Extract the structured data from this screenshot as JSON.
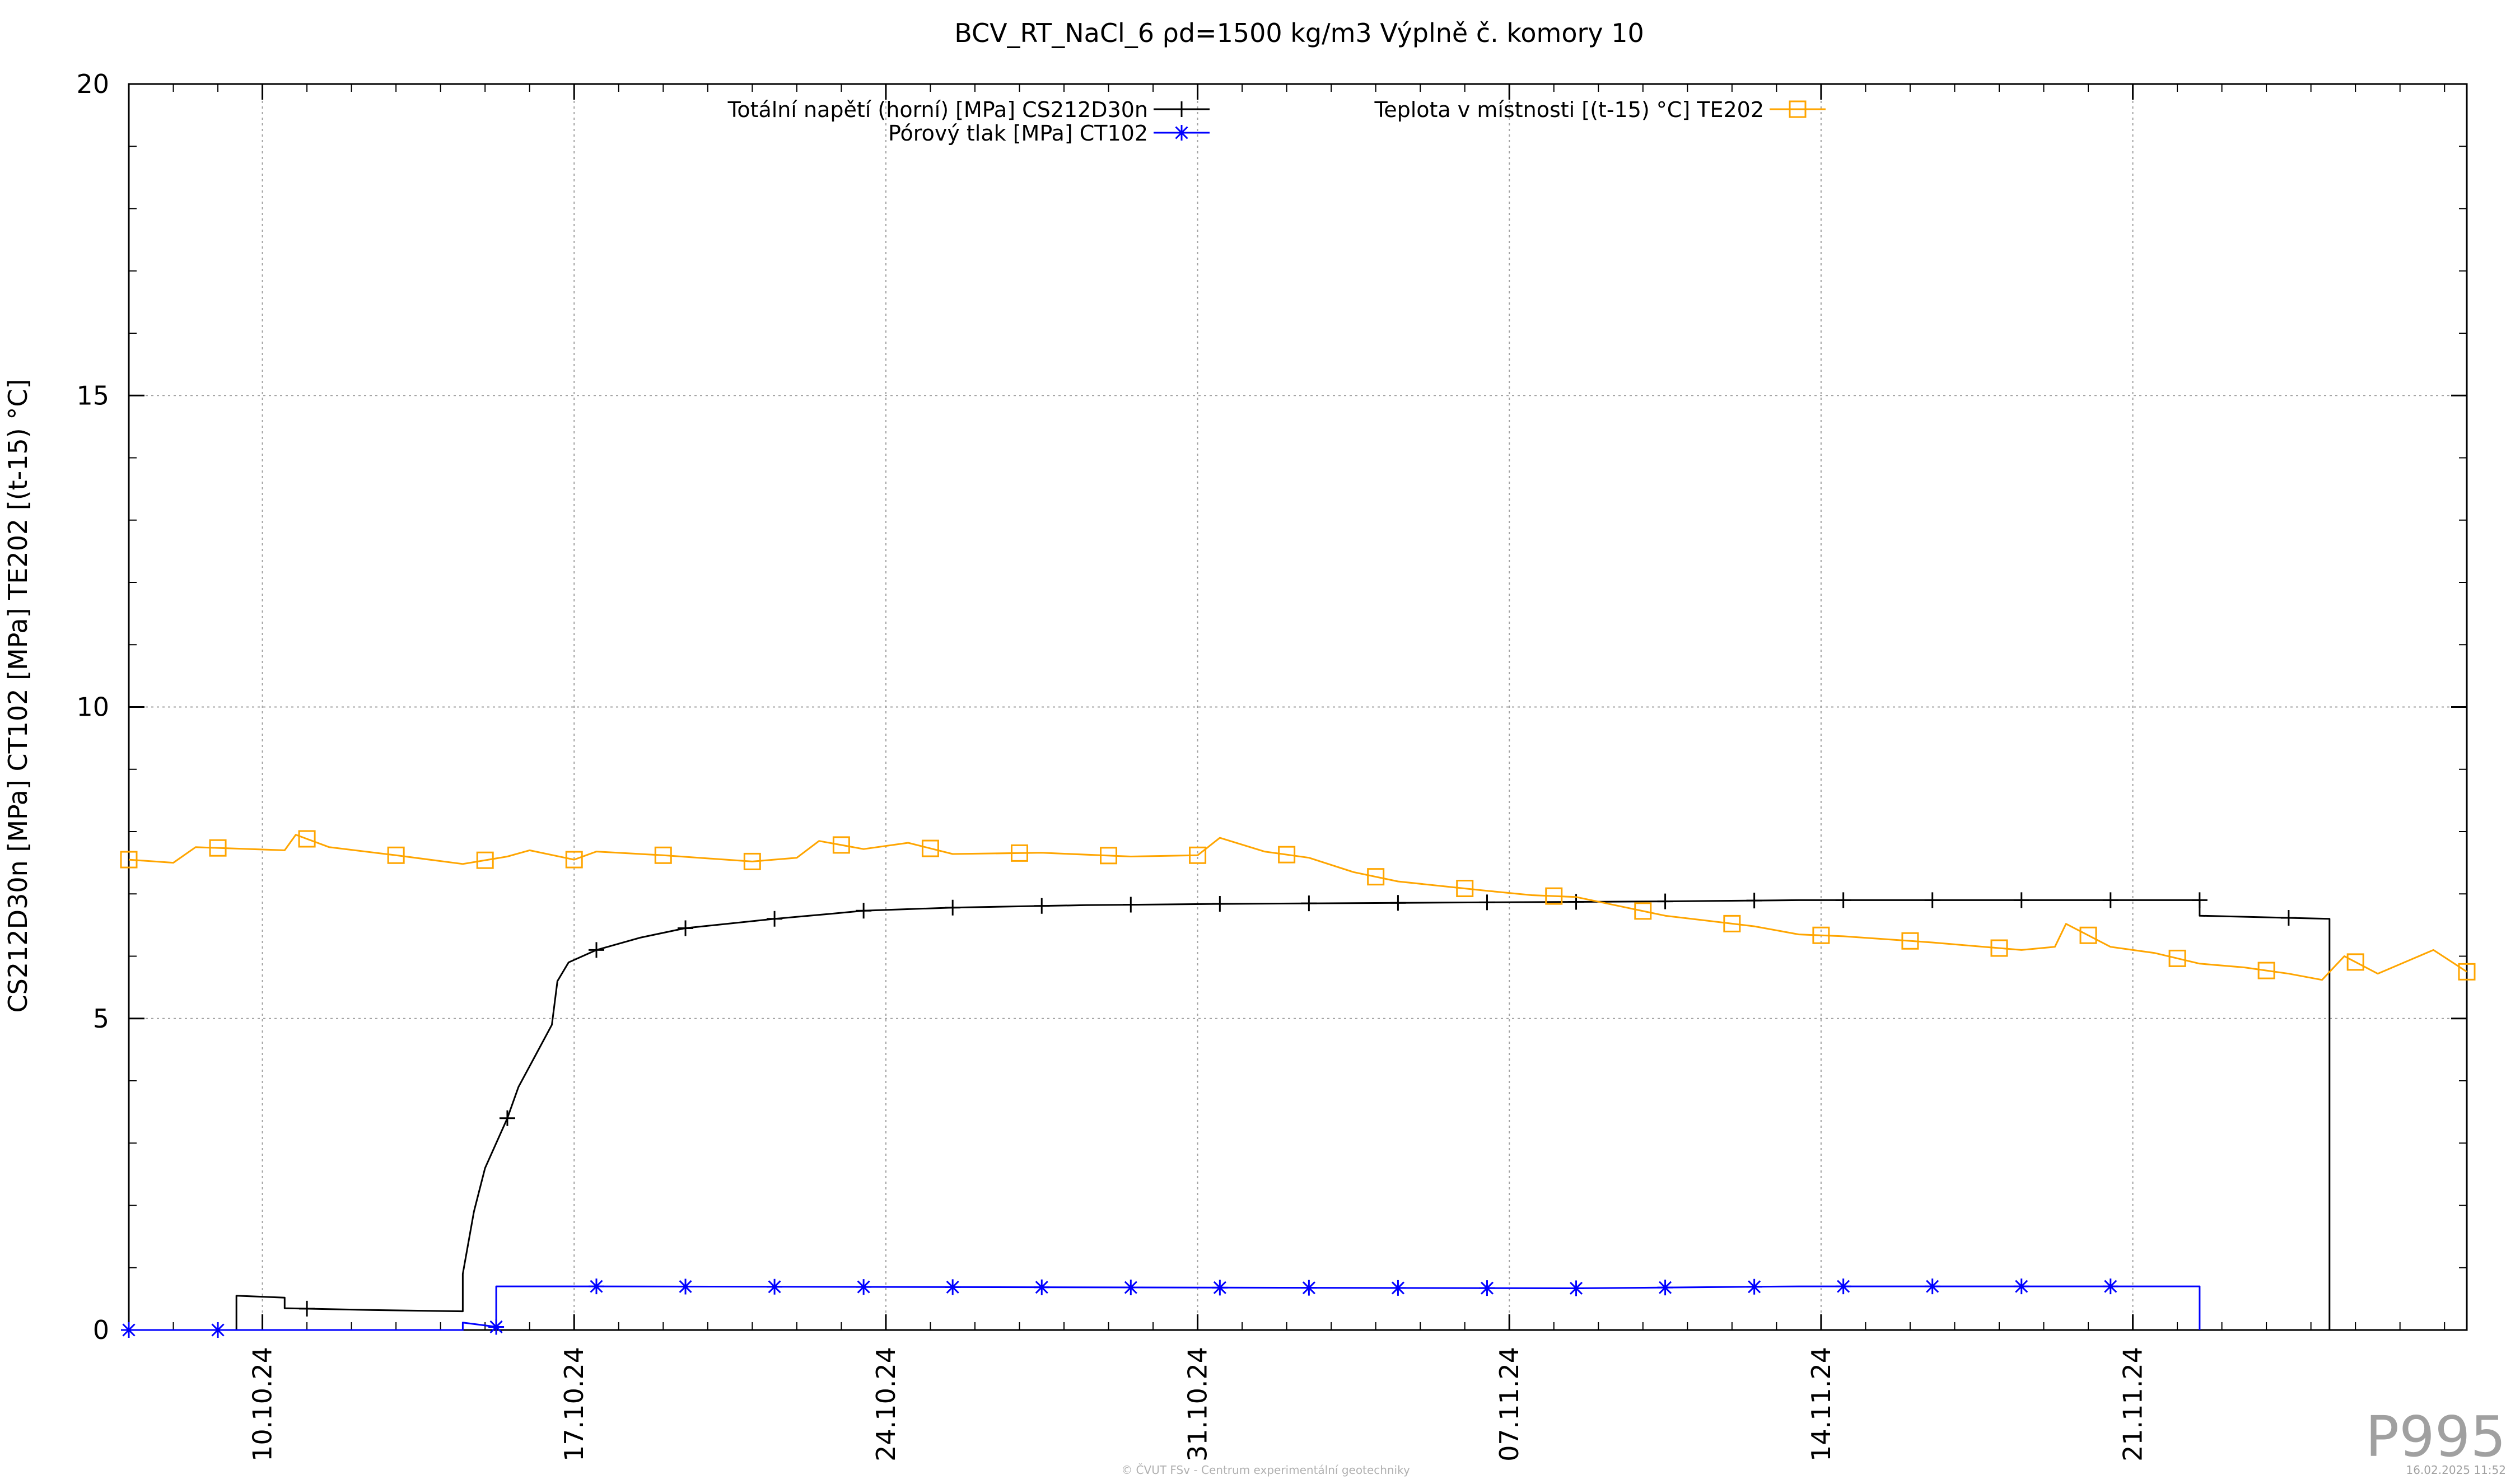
{
  "chart_data": {
    "type": "line",
    "title": "BCV_RT_NaCl_6 ρd=1500 kg/m3 Výplně č. komory 10",
    "ylabel": "CS212D30n [MPa] CT102 [MPa] TE202 [(t-15) °C]",
    "xlabel": "",
    "ylim": [
      0,
      20
    ],
    "yticks": [
      0,
      5,
      10,
      15,
      20
    ],
    "xlim": [
      "2024-10-07T00:00",
      "2024-11-28T12:00"
    ],
    "xticks": [
      "10.10.24",
      "17.10.24",
      "24.10.24",
      "31.10.24",
      "07.11.24",
      "14.11.24",
      "21.11.24"
    ],
    "xtick_dates": [
      "2024-10-10",
      "2024-10-17",
      "2024-10-24",
      "2024-10-31",
      "2024-11-07",
      "2024-11-14",
      "2024-11-21"
    ],
    "grid": true,
    "legend_position": "top",
    "series": [
      {
        "name": "Totální napětí (horní) [MPa] CS212D30n",
        "color": "#000000",
        "marker": "plus",
        "points": [
          [
            "2024-10-09T10:00",
            0.0
          ],
          [
            "2024-10-09T10:00",
            0.55
          ],
          [
            "2024-10-10T12:00",
            0.52
          ],
          [
            "2024-10-10T12:00",
            0.35
          ],
          [
            "2024-10-12T12:00",
            0.32
          ],
          [
            "2024-10-14T12:00",
            0.3
          ],
          [
            "2024-10-14T12:00",
            0.9
          ],
          [
            "2024-10-14T18:00",
            1.9
          ],
          [
            "2024-10-15T00:00",
            2.6
          ],
          [
            "2024-10-15T12:00",
            3.4
          ],
          [
            "2024-10-15T18:00",
            3.9
          ],
          [
            "2024-10-16T03:00",
            4.4
          ],
          [
            "2024-10-16T12:00",
            4.9
          ],
          [
            "2024-10-16T15:00",
            5.6
          ],
          [
            "2024-10-16T21:00",
            5.9
          ],
          [
            "2024-10-17T12:00",
            6.1
          ],
          [
            "2024-10-18T12:00",
            6.3
          ],
          [
            "2024-10-19T12:00",
            6.45
          ],
          [
            "2024-10-21T12:00",
            6.6
          ],
          [
            "2024-10-22T18:00",
            6.68
          ],
          [
            "2024-10-23T12:00",
            6.73
          ],
          [
            "2024-10-25T12:00",
            6.78
          ],
          [
            "2024-10-28T12:00",
            6.82
          ],
          [
            "2024-10-31T12:00",
            6.84
          ],
          [
            "2024-11-05T12:00",
            6.86
          ],
          [
            "2024-11-10T12:00",
            6.88
          ],
          [
            "2024-11-13T12:00",
            6.9
          ],
          [
            "2024-11-17T12:00",
            6.9
          ],
          [
            "2024-11-22T12:00",
            6.9
          ],
          [
            "2024-11-22T12:00",
            6.65
          ],
          [
            "2024-11-25T10:00",
            6.6
          ],
          [
            "2024-11-25T10:00",
            0.0
          ]
        ],
        "markers": [
          "2024-10-11T00:00",
          "2024-10-15T12:00",
          "2024-10-17T12:00",
          "2024-10-19T12:00",
          "2024-10-21T12:00",
          "2024-10-23T12:00",
          "2024-10-25T12:00",
          "2024-10-27T12:00",
          "2024-10-29T12:00",
          "2024-10-31T12:00",
          "2024-11-02T12:00",
          "2024-11-04T12:00",
          "2024-11-06T12:00",
          "2024-11-08T12:00",
          "2024-11-10T12:00",
          "2024-11-12T12:00",
          "2024-11-14T12:00",
          "2024-11-16T12:00",
          "2024-11-18T12:00",
          "2024-11-20T12:00",
          "2024-11-22T12:00",
          "2024-11-24T12:00"
        ]
      },
      {
        "name": "Pórový tlak [MPa] CT102",
        "color": "#0000ff",
        "marker": "star",
        "points": [
          [
            "2024-10-07T00:00",
            0.0
          ],
          [
            "2024-10-14T12:00",
            0.0
          ],
          [
            "2024-10-14T12:00",
            0.12
          ],
          [
            "2024-10-15T06:00",
            0.05
          ],
          [
            "2024-10-15T06:00",
            0.7
          ],
          [
            "2024-10-17T12:00",
            0.7
          ],
          [
            "2024-10-31T12:00",
            0.68
          ],
          [
            "2024-11-08T12:00",
            0.67
          ],
          [
            "2024-11-13T12:00",
            0.7
          ],
          [
            "2024-11-22T12:00",
            0.7
          ],
          [
            "2024-11-22T12:00",
            0.0
          ]
        ],
        "markers": [
          "2024-10-07T00:00",
          "2024-10-09T00:00",
          "2024-10-15T06:00",
          "2024-10-17T12:00",
          "2024-10-19T12:00",
          "2024-10-21T12:00",
          "2024-10-23T12:00",
          "2024-10-25T12:00",
          "2024-10-27T12:00",
          "2024-10-29T12:00",
          "2024-10-31T12:00",
          "2024-11-02T12:00",
          "2024-11-04T12:00",
          "2024-11-06T12:00",
          "2024-11-08T12:00",
          "2024-11-10T12:00",
          "2024-11-12T12:00",
          "2024-11-14T12:00",
          "2024-11-16T12:00",
          "2024-11-18T12:00",
          "2024-11-20T12:00"
        ]
      },
      {
        "name": "Teplota v místnosti [(t-15) °C] TE202",
        "color": "#ffa500",
        "marker": "square",
        "points": [
          [
            "2024-10-07T00:00",
            7.55
          ],
          [
            "2024-10-08T00:00",
            7.5
          ],
          [
            "2024-10-08T12:00",
            7.75
          ],
          [
            "2024-10-10T12:00",
            7.7
          ],
          [
            "2024-10-10T18:00",
            7.95
          ],
          [
            "2024-10-11T12:00",
            7.75
          ],
          [
            "2024-10-13T00:00",
            7.62
          ],
          [
            "2024-10-14T12:00",
            7.48
          ],
          [
            "2024-10-15T12:00",
            7.6
          ],
          [
            "2024-10-16T00:00",
            7.7
          ],
          [
            "2024-10-17T00:00",
            7.55
          ],
          [
            "2024-10-17T12:00",
            7.68
          ],
          [
            "2024-10-19T00:00",
            7.62
          ],
          [
            "2024-10-21T00:00",
            7.52
          ],
          [
            "2024-10-22T00:00",
            7.58
          ],
          [
            "2024-10-22T12:00",
            7.85
          ],
          [
            "2024-10-23T12:00",
            7.72
          ],
          [
            "2024-10-24T12:00",
            7.82
          ],
          [
            "2024-10-25T12:00",
            7.64
          ],
          [
            "2024-10-27T12:00",
            7.66
          ],
          [
            "2024-10-29T12:00",
            7.6
          ],
          [
            "2024-10-31T00:00",
            7.62
          ],
          [
            "2024-10-31T12:00",
            7.9
          ],
          [
            "2024-11-01T12:00",
            7.68
          ],
          [
            "2024-11-02T12:00",
            7.58
          ],
          [
            "2024-11-03T12:00",
            7.35
          ],
          [
            "2024-11-04T12:00",
            7.2
          ],
          [
            "2024-11-06T12:00",
            7.05
          ],
          [
            "2024-11-07T12:00",
            6.98
          ],
          [
            "2024-11-08T12:00",
            6.95
          ],
          [
            "2024-11-10T12:00",
            6.65
          ],
          [
            "2024-11-12T12:00",
            6.48
          ],
          [
            "2024-11-13T12:00",
            6.35
          ],
          [
            "2024-11-14T12:00",
            6.32
          ],
          [
            "2024-11-16T12:00",
            6.22
          ],
          [
            "2024-11-18T12:00",
            6.1
          ],
          [
            "2024-11-19T06:00",
            6.15
          ],
          [
            "2024-11-19T12:00",
            6.52
          ],
          [
            "2024-11-20T12:00",
            6.15
          ],
          [
            "2024-11-21T12:00",
            6.05
          ],
          [
            "2024-11-22T12:00",
            5.88
          ],
          [
            "2024-11-23T12:00",
            5.82
          ],
          [
            "2024-11-24T12:00",
            5.72
          ],
          [
            "2024-11-25T06:00",
            5.62
          ],
          [
            "2024-11-25T18:00",
            6.0
          ],
          [
            "2024-11-26T12:00",
            5.72
          ],
          [
            "2024-11-27T18:00",
            6.1
          ],
          [
            "2024-11-28T12:00",
            5.75
          ]
        ],
        "markers": [
          "2024-10-07T00:00",
          "2024-10-09T00:00",
          "2024-10-11T00:00",
          "2024-10-13T00:00",
          "2024-10-15T00:00",
          "2024-10-17T00:00",
          "2024-10-19T00:00",
          "2024-10-21T00:00",
          "2024-10-23T00:00",
          "2024-10-25T00:00",
          "2024-10-27T00:00",
          "2024-10-29T00:00",
          "2024-10-31T00:00",
          "2024-11-02T00:00",
          "2024-11-04T00:00",
          "2024-11-06T00:00",
          "2024-11-08T00:00",
          "2024-11-10T00:00",
          "2024-11-12T00:00",
          "2024-11-14T00:00",
          "2024-11-16T00:00",
          "2024-11-18T00:00",
          "2024-11-20T00:00",
          "2024-11-22T00:00",
          "2024-11-24T00:00",
          "2024-11-26T00:00",
          "2024-11-28T12:00"
        ]
      }
    ]
  },
  "watermark": "P995",
  "footer_center": "© ČVUT FSv - Centrum experimentální geotechniky",
  "footer_right": "16.02.2025 11:52"
}
